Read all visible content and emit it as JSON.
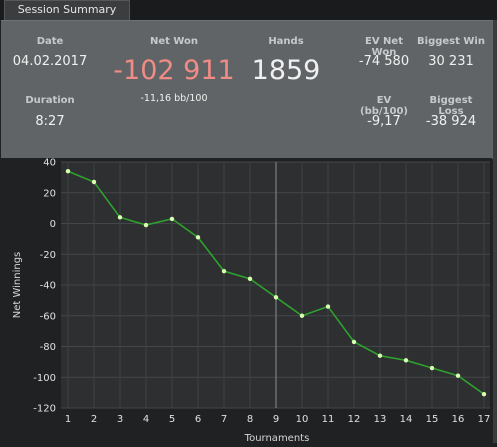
{
  "tab": {
    "label": "Session Summary"
  },
  "summary": {
    "date_label": "Date",
    "date_value": "04.02.2017",
    "duration_label": "Duration",
    "duration_value": "8:27",
    "netwon_label": "Net Won",
    "netwon_value": "-102 911",
    "netwon_sub": "-11,16 bb/100",
    "hands_label": "Hands",
    "hands_value": "1859",
    "ev_net_won_label": "EV Net Won",
    "ev_net_won_value": "-74 580",
    "biggest_win_label": "Biggest Win",
    "biggest_win_value": "30 231",
    "ev_bb_label": "EV (bb/100)",
    "ev_bb_value": "-9,17",
    "biggest_loss_label": "Biggest Loss",
    "biggest_loss_value": "-38 924"
  },
  "colors": {
    "negative": "#f08b86",
    "line": "#2ea12e",
    "point": "#d9ffb0"
  },
  "chart_data": {
    "type": "line",
    "xlabel": "Tournaments",
    "ylabel": "Net Winnings",
    "x": [
      1,
      2,
      3,
      4,
      5,
      6,
      7,
      8,
      9,
      10,
      11,
      12,
      13,
      14,
      15,
      16,
      17
    ],
    "y": [
      34,
      27,
      4,
      -1,
      3,
      -9,
      -31,
      -36,
      -48,
      -60,
      -54,
      -77,
      -86,
      -89,
      -94,
      -99,
      -111
    ],
    "ylim": [
      -120,
      40
    ],
    "yticks": [
      40,
      20,
      0,
      -20,
      -40,
      -60,
      -80,
      -100,
      -120
    ],
    "xticks": [
      "1",
      "2",
      "3",
      "4",
      "5",
      "6",
      "7",
      "8",
      "9",
      "10",
      "11",
      "12",
      "13",
      "14",
      "15",
      "16",
      "17"
    ],
    "grid": true
  }
}
